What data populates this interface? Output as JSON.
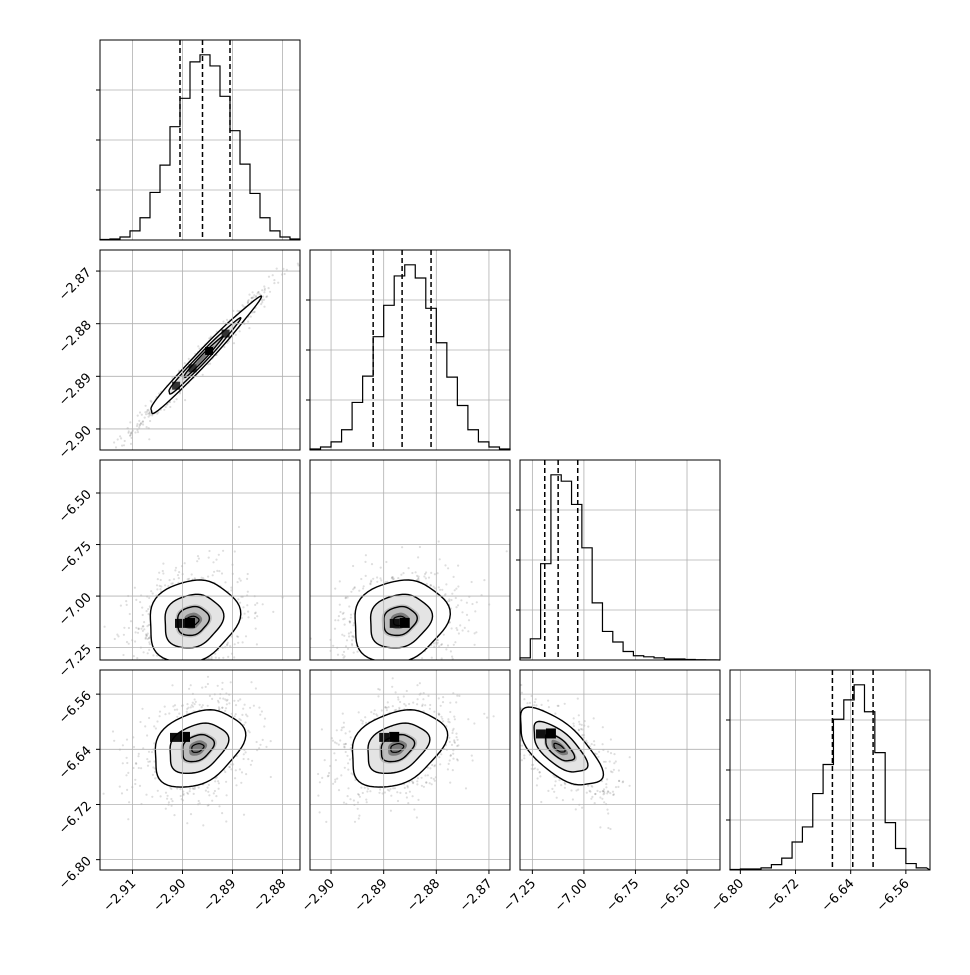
{
  "chart_data": {
    "type": "corner",
    "title": "",
    "grid": true,
    "parameters": [
      {
        "name": "",
        "ticks": [
          "-2.91",
          "-2.90",
          "-2.89",
          "-2.88"
        ],
        "range": [
          -2.9165,
          -2.8765
        ]
      },
      {
        "name": "",
        "ticks": [
          "-2.90",
          "-2.89",
          "-2.88",
          "-2.87"
        ],
        "range": [
          -2.904,
          -2.866
        ]
      },
      {
        "name": "",
        "ticks": [
          "-7.25",
          "-7.00",
          "-6.75",
          "-6.50"
        ],
        "range": [
          -7.31,
          -6.34
        ]
      },
      {
        "name": "",
        "ticks": [
          "-6.80",
          "-6.72",
          "-6.64",
          "-6.56"
        ],
        "range": [
          -6.815,
          -6.525
        ]
      }
    ],
    "left_axis_ticks": [
      [
        "-2.87",
        "-2.88",
        "-2.89",
        "-2.90"
      ],
      [
        "-6.50",
        "-6.75",
        "-7.00",
        "-7.25"
      ],
      [
        "-6.56",
        "-6.64",
        "-6.72",
        "-6.80"
      ]
    ],
    "marginals": [
      {
        "param": 0,
        "quantiles": [
          -2.9005,
          -2.896,
          -2.8905
        ],
        "bin_edges": [
          -2.9165,
          -2.9145,
          -2.9125,
          -2.9105,
          -2.9085,
          -2.9065,
          -2.9045,
          -2.9025,
          -2.9005,
          -2.8985,
          -2.8965,
          -2.8945,
          -2.8925,
          -2.8905,
          -2.8885,
          -2.8865,
          -2.8845,
          -2.8825,
          -2.8805,
          -2.8785,
          -2.8765
        ],
        "counts": [
          0.5,
          1,
          3,
          9,
          22,
          47,
          74,
          112,
          140,
          176,
          183,
          172,
          142,
          108,
          75,
          46,
          22,
          9,
          3,
          1
        ]
      },
      {
        "param": 1,
        "quantiles": [
          -2.892,
          -2.8865,
          -2.881
        ],
        "bin_edges": [
          -2.904,
          -2.902,
          -2.9,
          -2.898,
          -2.896,
          -2.894,
          -2.892,
          -2.89,
          -2.888,
          -2.886,
          -2.884,
          -2.882,
          -2.88,
          -2.878,
          -2.876,
          -2.874,
          -2.872,
          -2.87,
          -2.868,
          -2.866
        ],
        "counts": [
          1,
          3,
          8,
          20,
          47,
          73,
          112,
          143,
          172,
          183,
          170,
          140,
          106,
          72,
          44,
          20,
          8,
          3,
          1
        ]
      },
      {
        "param": 2,
        "quantiles": [
          -7.19,
          -7.125,
          -7.03
        ],
        "bin_edges": [
          -7.31,
          -7.26,
          -7.21,
          -7.16,
          -7.11,
          -7.06,
          -7.01,
          -6.96,
          -6.91,
          -6.86,
          -6.81,
          -6.76,
          -6.71,
          -6.66,
          -6.61,
          -6.56,
          -6.51,
          -6.46,
          -6.41,
          -6.36
        ],
        "counts": [
          2,
          20,
          91,
          175,
          169,
          147,
          106,
          54,
          27,
          17,
          8,
          4,
          3,
          2,
          1,
          1,
          0.5,
          0.3,
          0.2
        ]
      },
      {
        "param": 3,
        "quantiles": [
          -6.6665,
          -6.637,
          -6.6075
        ],
        "bin_edges": [
          -6.815,
          -6.8,
          -6.785,
          -6.77,
          -6.755,
          -6.74,
          -6.725,
          -6.71,
          -6.695,
          -6.68,
          -6.665,
          -6.65,
          -6.635,
          -6.62,
          -6.605,
          -6.59,
          -6.575,
          -6.56,
          -6.545,
          -6.53
        ],
        "counts": [
          0.5,
          1,
          1,
          2,
          5,
          11,
          26,
          40,
          71,
          98,
          140,
          158,
          172,
          147,
          109,
          44,
          20,
          6,
          2
        ]
      }
    ],
    "pairs": [
      {
        "x": 0,
        "y": 1,
        "mean": [
          -2.896,
          -2.8865
        ],
        "sd": [
          0.0055,
          0.0055
        ],
        "rho": 0.985
      },
      {
        "x": 0,
        "y": 2,
        "mean": [
          -2.898,
          -7.12
        ],
        "sd": [
          0.0045,
          0.1
        ],
        "rho": 0.15,
        "dense_cell": [
          -2.8985,
          -7.13
        ]
      },
      {
        "x": 1,
        "y": 2,
        "mean": [
          -2.887,
          -7.12
        ],
        "sd": [
          0.0045,
          0.1
        ],
        "rho": 0.15,
        "dense_cell": [
          -2.886,
          -7.13
        ]
      },
      {
        "x": 0,
        "y": 3,
        "mean": [
          -2.897,
          -6.638
        ],
        "sd": [
          0.0045,
          0.028
        ],
        "rho": 0.3,
        "dense_cell": [
          -2.8995,
          -6.622
        ]
      },
      {
        "x": 1,
        "y": 3,
        "mean": [
          -2.8875,
          -6.638
        ],
        "sd": [
          0.0045,
          0.028
        ],
        "rho": 0.3,
        "dense_cell": [
          -2.888,
          -6.622
        ]
      },
      {
        "x": 2,
        "y": 3,
        "mean": [
          -7.12,
          -6.638
        ],
        "sd": [
          0.1,
          0.028
        ],
        "rho": -0.65,
        "dense_cell": [
          -7.16,
          -6.617
        ]
      }
    ]
  }
}
